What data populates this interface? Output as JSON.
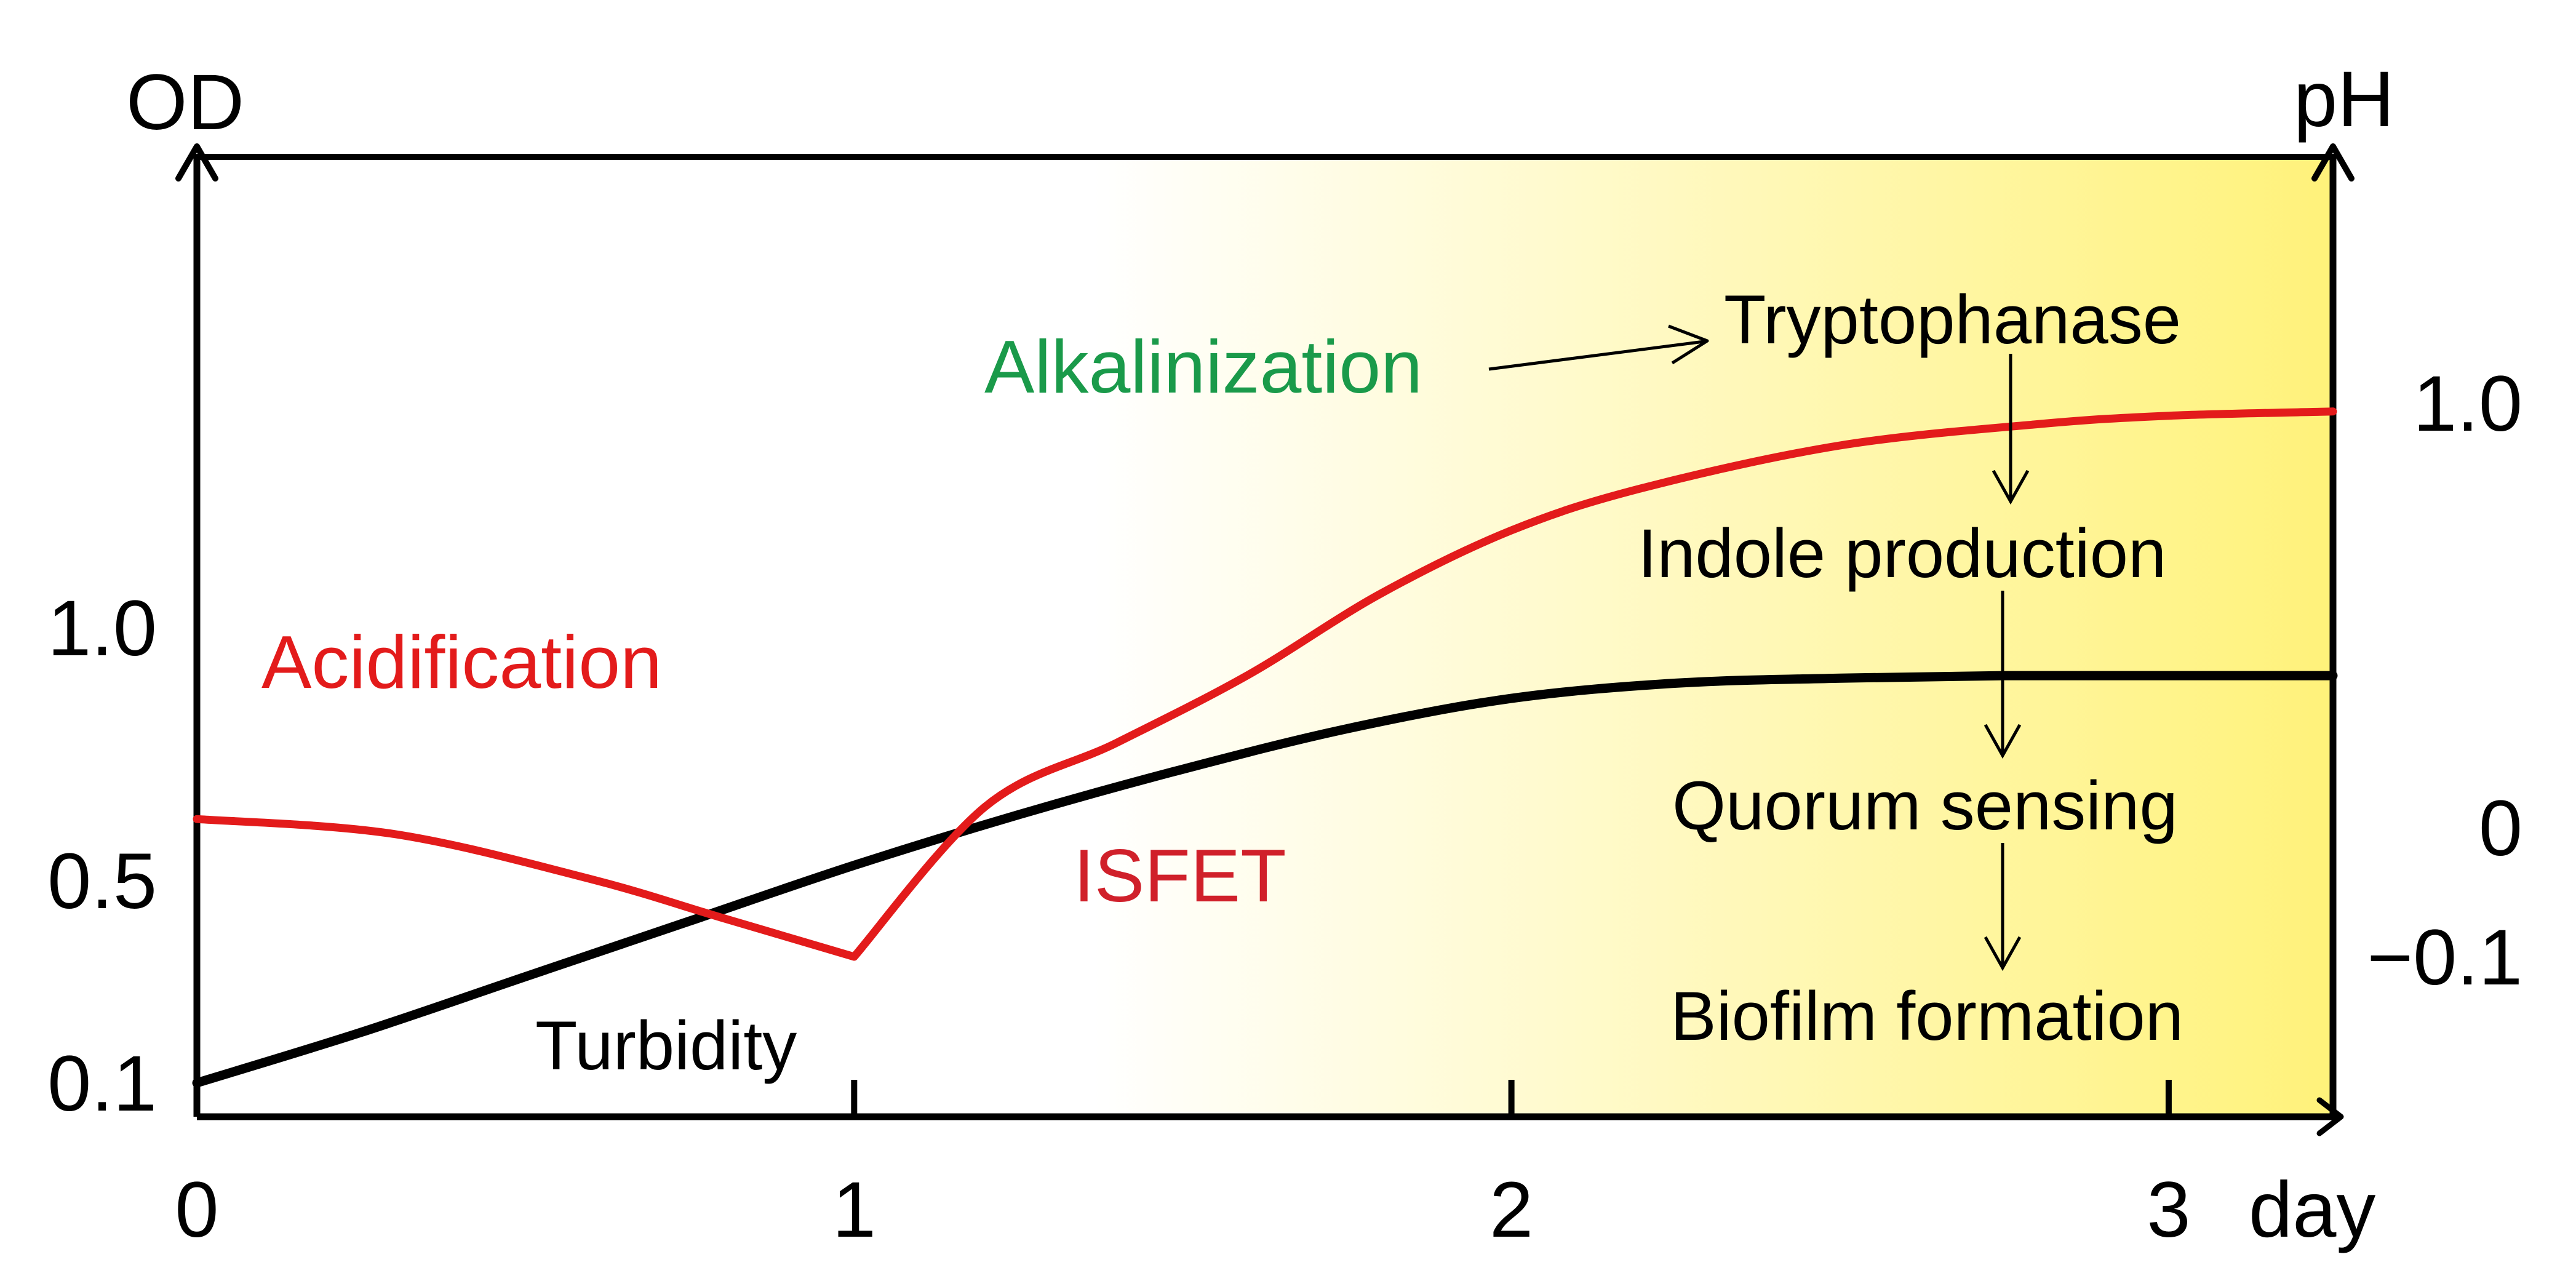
{
  "chart_data": {
    "type": "line",
    "left_axis_label": "OD",
    "right_axis_label": "pH",
    "x_unit_label": "day",
    "xlim": [
      0,
      3.25
    ],
    "x_ticks": [
      {
        "value": 0,
        "label": "0"
      },
      {
        "value": 1,
        "label": "1"
      },
      {
        "value": 2,
        "label": "2"
      },
      {
        "value": 3,
        "label": "3"
      }
    ],
    "y_left_ticks": [
      {
        "value": 1.0,
        "label": "1.0"
      },
      {
        "value": 0.5,
        "label": "0.5"
      },
      {
        "value": 0.1,
        "label": "0.1"
      }
    ],
    "y_right_ticks": [
      {
        "value": 1.0,
        "label": "1.0"
      },
      {
        "value": 0,
        "label": "0"
      },
      {
        "value": -0.1,
        "label": "−0.1"
      }
    ],
    "series": [
      {
        "name": "Turbidity",
        "axis": "left",
        "color": "#000000",
        "x": [
          0,
          0.25,
          0.5,
          0.75,
          1.0,
          1.25,
          1.5,
          1.75,
          2.0,
          2.25,
          2.5,
          2.75,
          3.0,
          3.25
        ],
        "y": [
          0.1,
          0.2,
          0.31,
          0.42,
          0.53,
          0.63,
          0.72,
          0.8,
          0.86,
          0.89,
          0.9,
          0.905,
          0.905,
          0.905
        ]
      },
      {
        "name": "ISFET",
        "axis": "right",
        "color": "#e31b1b",
        "x": [
          0,
          0.3,
          0.6,
          0.8,
          1.0,
          1.2,
          1.4,
          1.6,
          1.8,
          2.0,
          2.2,
          2.5,
          2.8,
          3.0,
          3.25
        ],
        "y": [
          0.02,
          -0.005,
          -0.04,
          -0.07,
          -0.1,
          0.05,
          0.2,
          0.36,
          0.55,
          0.7,
          0.8,
          0.9,
          0.95,
          0.97,
          0.98
        ]
      }
    ],
    "annotations": {
      "acidification": "Acidification",
      "alkalinization": "Alkalinization",
      "isfet": "ISFET",
      "turbidity": "Turbidity",
      "pathway": [
        "Tryptophanase",
        "Indole production",
        "Quorum sensing",
        "Biofilm formation"
      ]
    },
    "colors": {
      "acidification": "#e31b1b",
      "alkalinization": "#1a9a4a",
      "isfet": "#d0202a",
      "highlight": "#fff27a"
    }
  }
}
